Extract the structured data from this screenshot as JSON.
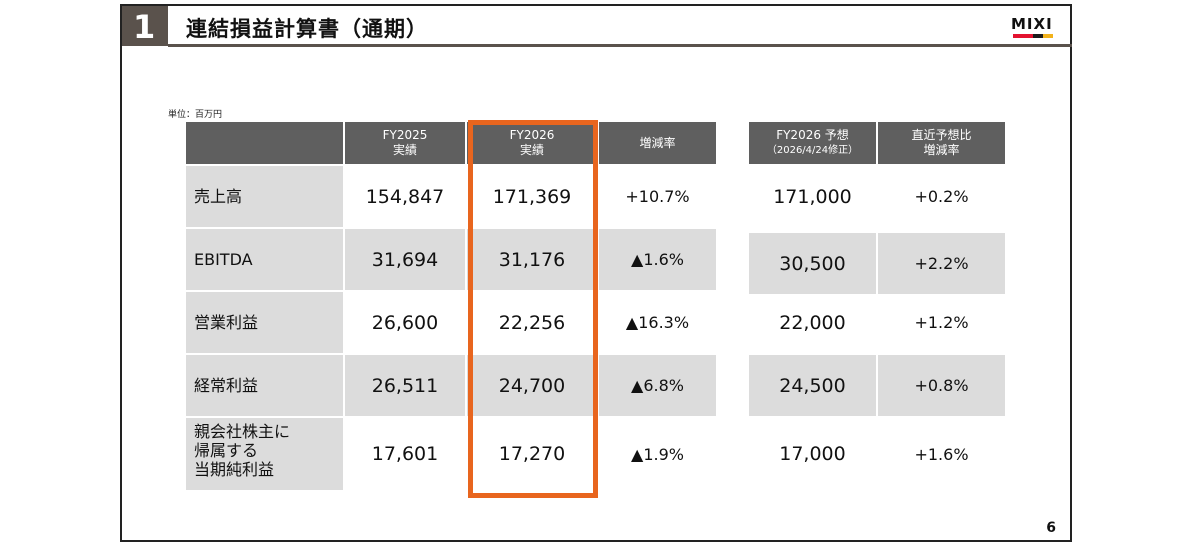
{
  "header": {
    "section_number": "1",
    "title": "連結損益計算書（通期）",
    "logo_text": "MIXI",
    "logo_colors": [
      "#e3122f",
      "#e3122f",
      "#1b1b1b",
      "#f2b21b"
    ]
  },
  "unit_label": "単位：百万円",
  "page_number": "6",
  "main_table": {
    "columns": [
      {
        "line1": "",
        "line2": ""
      },
      {
        "line1": "FY2025",
        "line2": "実績"
      },
      {
        "line1": "FY2026",
        "line2": "実績"
      },
      {
        "line1": "増減率",
        "line2": ""
      }
    ],
    "rows": [
      {
        "label": "売上高",
        "fy2025": "154,847",
        "fy2026": "171,369",
        "change": "+10.7%"
      },
      {
        "label": "EBITDA",
        "fy2025": "31,694",
        "fy2026": "31,176",
        "change": "▲1.6%"
      },
      {
        "label": "営業利益",
        "fy2025": "26,600",
        "fy2026": "22,256",
        "change": "▲16.3%"
      },
      {
        "label": "経常利益",
        "fy2025": "26,511",
        "fy2026": "24,700",
        "change": "▲6.8%"
      },
      {
        "label": "親会社株主に\n帰属する\n当期純利益",
        "fy2025": "17,601",
        "fy2026": "17,270",
        "change": "▲1.9%"
      }
    ]
  },
  "forecast_table": {
    "columns": [
      {
        "line1": "FY2026 予想",
        "line2": "（2026/4/24修正）"
      },
      {
        "line1": "直近予想比",
        "line2": "増減率"
      }
    ],
    "rows": [
      {
        "forecast": "171,000",
        "change": "+0.2%"
      },
      {
        "forecast": "30,500",
        "change": "+2.2%"
      },
      {
        "forecast": "22,000",
        "change": "+1.2%"
      },
      {
        "forecast": "24,500",
        "change": "+0.8%"
      },
      {
        "forecast": "17,000",
        "change": "+1.6%"
      }
    ]
  }
}
